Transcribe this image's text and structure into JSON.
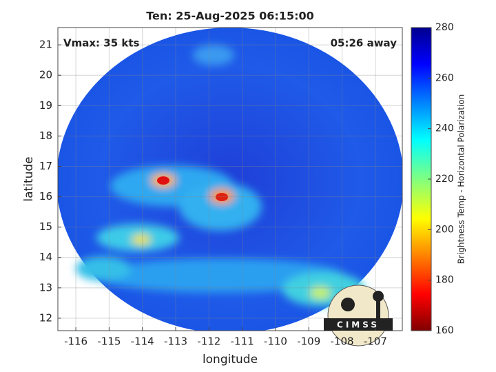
{
  "title": "Ten: 25-Aug-2025 06:15:00",
  "annotations": {
    "left": "Vmax: 35 kts",
    "right": "05:26 away"
  },
  "logo": "CIMSS",
  "map": {
    "xlabel": "longitude",
    "ylabel": "latitude",
    "xlim": [
      -116.54,
      -106.19
    ],
    "ylim": [
      11.59,
      21.57
    ],
    "xticks": [
      -116,
      -115,
      -114,
      -113,
      -112,
      -111,
      -110,
      -109,
      -108,
      -107
    ],
    "yticks": [
      12,
      13,
      14,
      15,
      16,
      17,
      18,
      19,
      20,
      21
    ],
    "grid": true
  },
  "colorbar": {
    "label": "Brightness Temp - Horizontal Polarization",
    "clim": [
      160,
      280
    ],
    "ticks": [
      160,
      180,
      200,
      220,
      240,
      260,
      280
    ]
  }
}
